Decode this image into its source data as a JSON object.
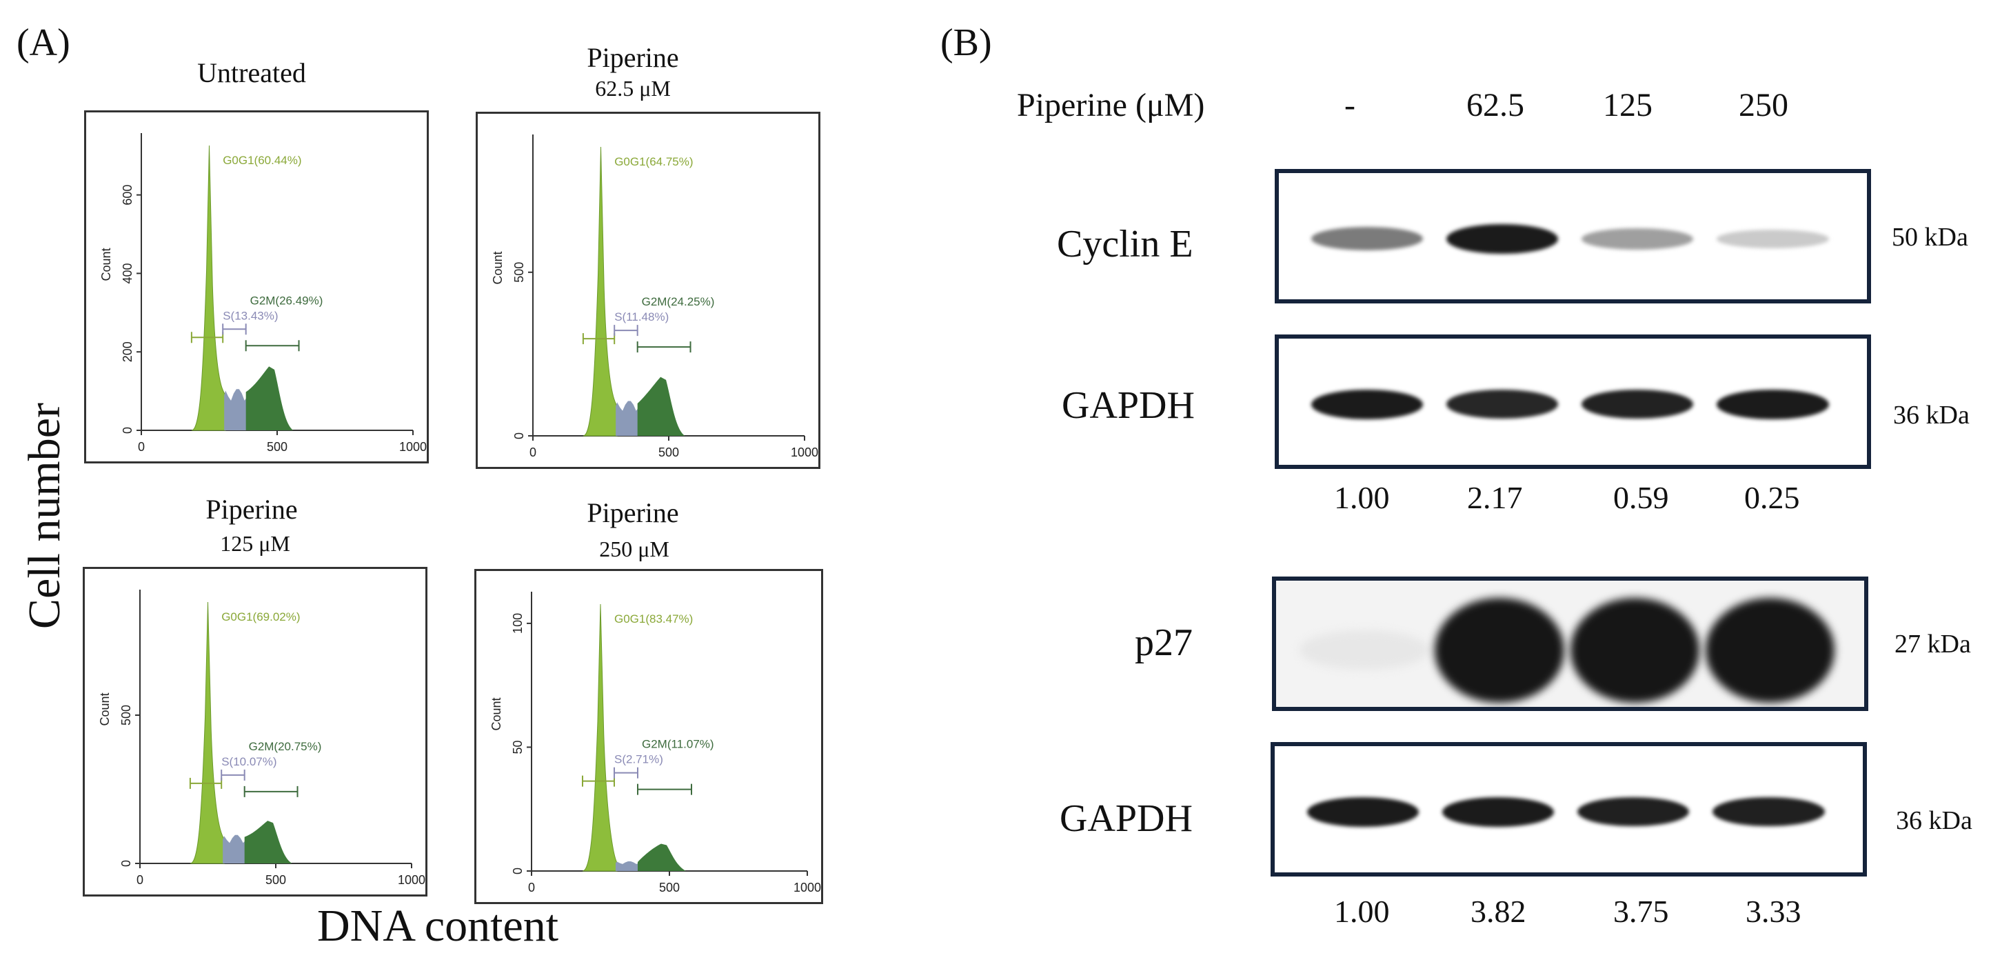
{
  "panel_a": {
    "label": "(A)",
    "y_axis_label": "Cell number",
    "x_axis_label": "DNA content",
    "histograms": [
      {
        "id": "untreated",
        "title": "Untreated",
        "subtitle": "",
        "g0g1": "G0G1(60.44%)",
        "s": "S(13.43%)",
        "g2m": "G2M(26.49%)",
        "y_label": "Count",
        "y_ticks": [
          "0",
          "200",
          "400",
          "600"
        ],
        "x_ticks": [
          "0",
          "500",
          "1000"
        ],
        "ymax": 740
      },
      {
        "id": "pip625",
        "title": "Piperine",
        "subtitle": "62.5 μM",
        "g0g1": "G0G1(64.75%)",
        "s": "S(11.48%)",
        "g2m": "G2M(24.25%)",
        "y_label": "Count",
        "y_ticks": [
          "0",
          "500"
        ],
        "x_ticks": [
          "0",
          "500",
          "1000"
        ],
        "ymax": 900
      },
      {
        "id": "pip125",
        "title": "Piperine",
        "subtitle": "125 μM",
        "g0g1": "G0G1(69.02%)",
        "s": "S(10.07%)",
        "g2m": "G2M(20.75%)",
        "y_label": "Count",
        "y_ticks": [
          "0",
          "500"
        ],
        "x_ticks": [
          "0",
          "500",
          "1000"
        ],
        "ymax": 900
      },
      {
        "id": "pip250",
        "title": "Piperine",
        "subtitle": "250 μM",
        "g0g1": "G0G1(83.47%)",
        "s": "S(2.71%)",
        "g2m": "G2M(11.07%)",
        "y_label": "Count",
        "y_ticks": [
          "0",
          "50",
          "100"
        ],
        "x_ticks": [
          "0",
          "500",
          "1000"
        ],
        "ymax": 110
      }
    ]
  },
  "panel_b": {
    "label": "(B)",
    "treatment_label": "Piperine (μM)",
    "doses": [
      "-",
      "62.5",
      "125",
      "250"
    ],
    "blots": [
      {
        "id": "cyclin-e",
        "label": "Cyclin E",
        "kda": "50 kDa",
        "intensity": [
          0.55,
          0.95,
          0.4,
          0.22
        ]
      },
      {
        "id": "gapdh-1",
        "label": "GAPDH",
        "kda": "36 kDa",
        "intensity": [
          0.95,
          0.9,
          0.92,
          0.95
        ]
      },
      {
        "id": "p27",
        "label": "p27",
        "kda": "27 kDa",
        "intensity": [
          0.1,
          0.97,
          0.97,
          0.97
        ]
      },
      {
        "id": "gapdh-2",
        "label": "GAPDH",
        "kda": "36 kDa",
        "intensity": [
          0.95,
          0.95,
          0.93,
          0.93
        ]
      }
    ],
    "ratios_cyclin_e": [
      "1.00",
      "2.17",
      "0.59",
      "0.25"
    ],
    "ratios_p27": [
      "1.00",
      "3.82",
      "3.75",
      "3.33"
    ]
  },
  "colors": {
    "g0g1_fill": "#8dbd3b",
    "s_fill": "#8b9ab8",
    "g2m_fill": "#3d7a3a",
    "g0g1_text": "#8aa838",
    "s_text": "#8a8ab5",
    "g2m_text": "#3e6b3e",
    "blot_border": "#15233b"
  }
}
